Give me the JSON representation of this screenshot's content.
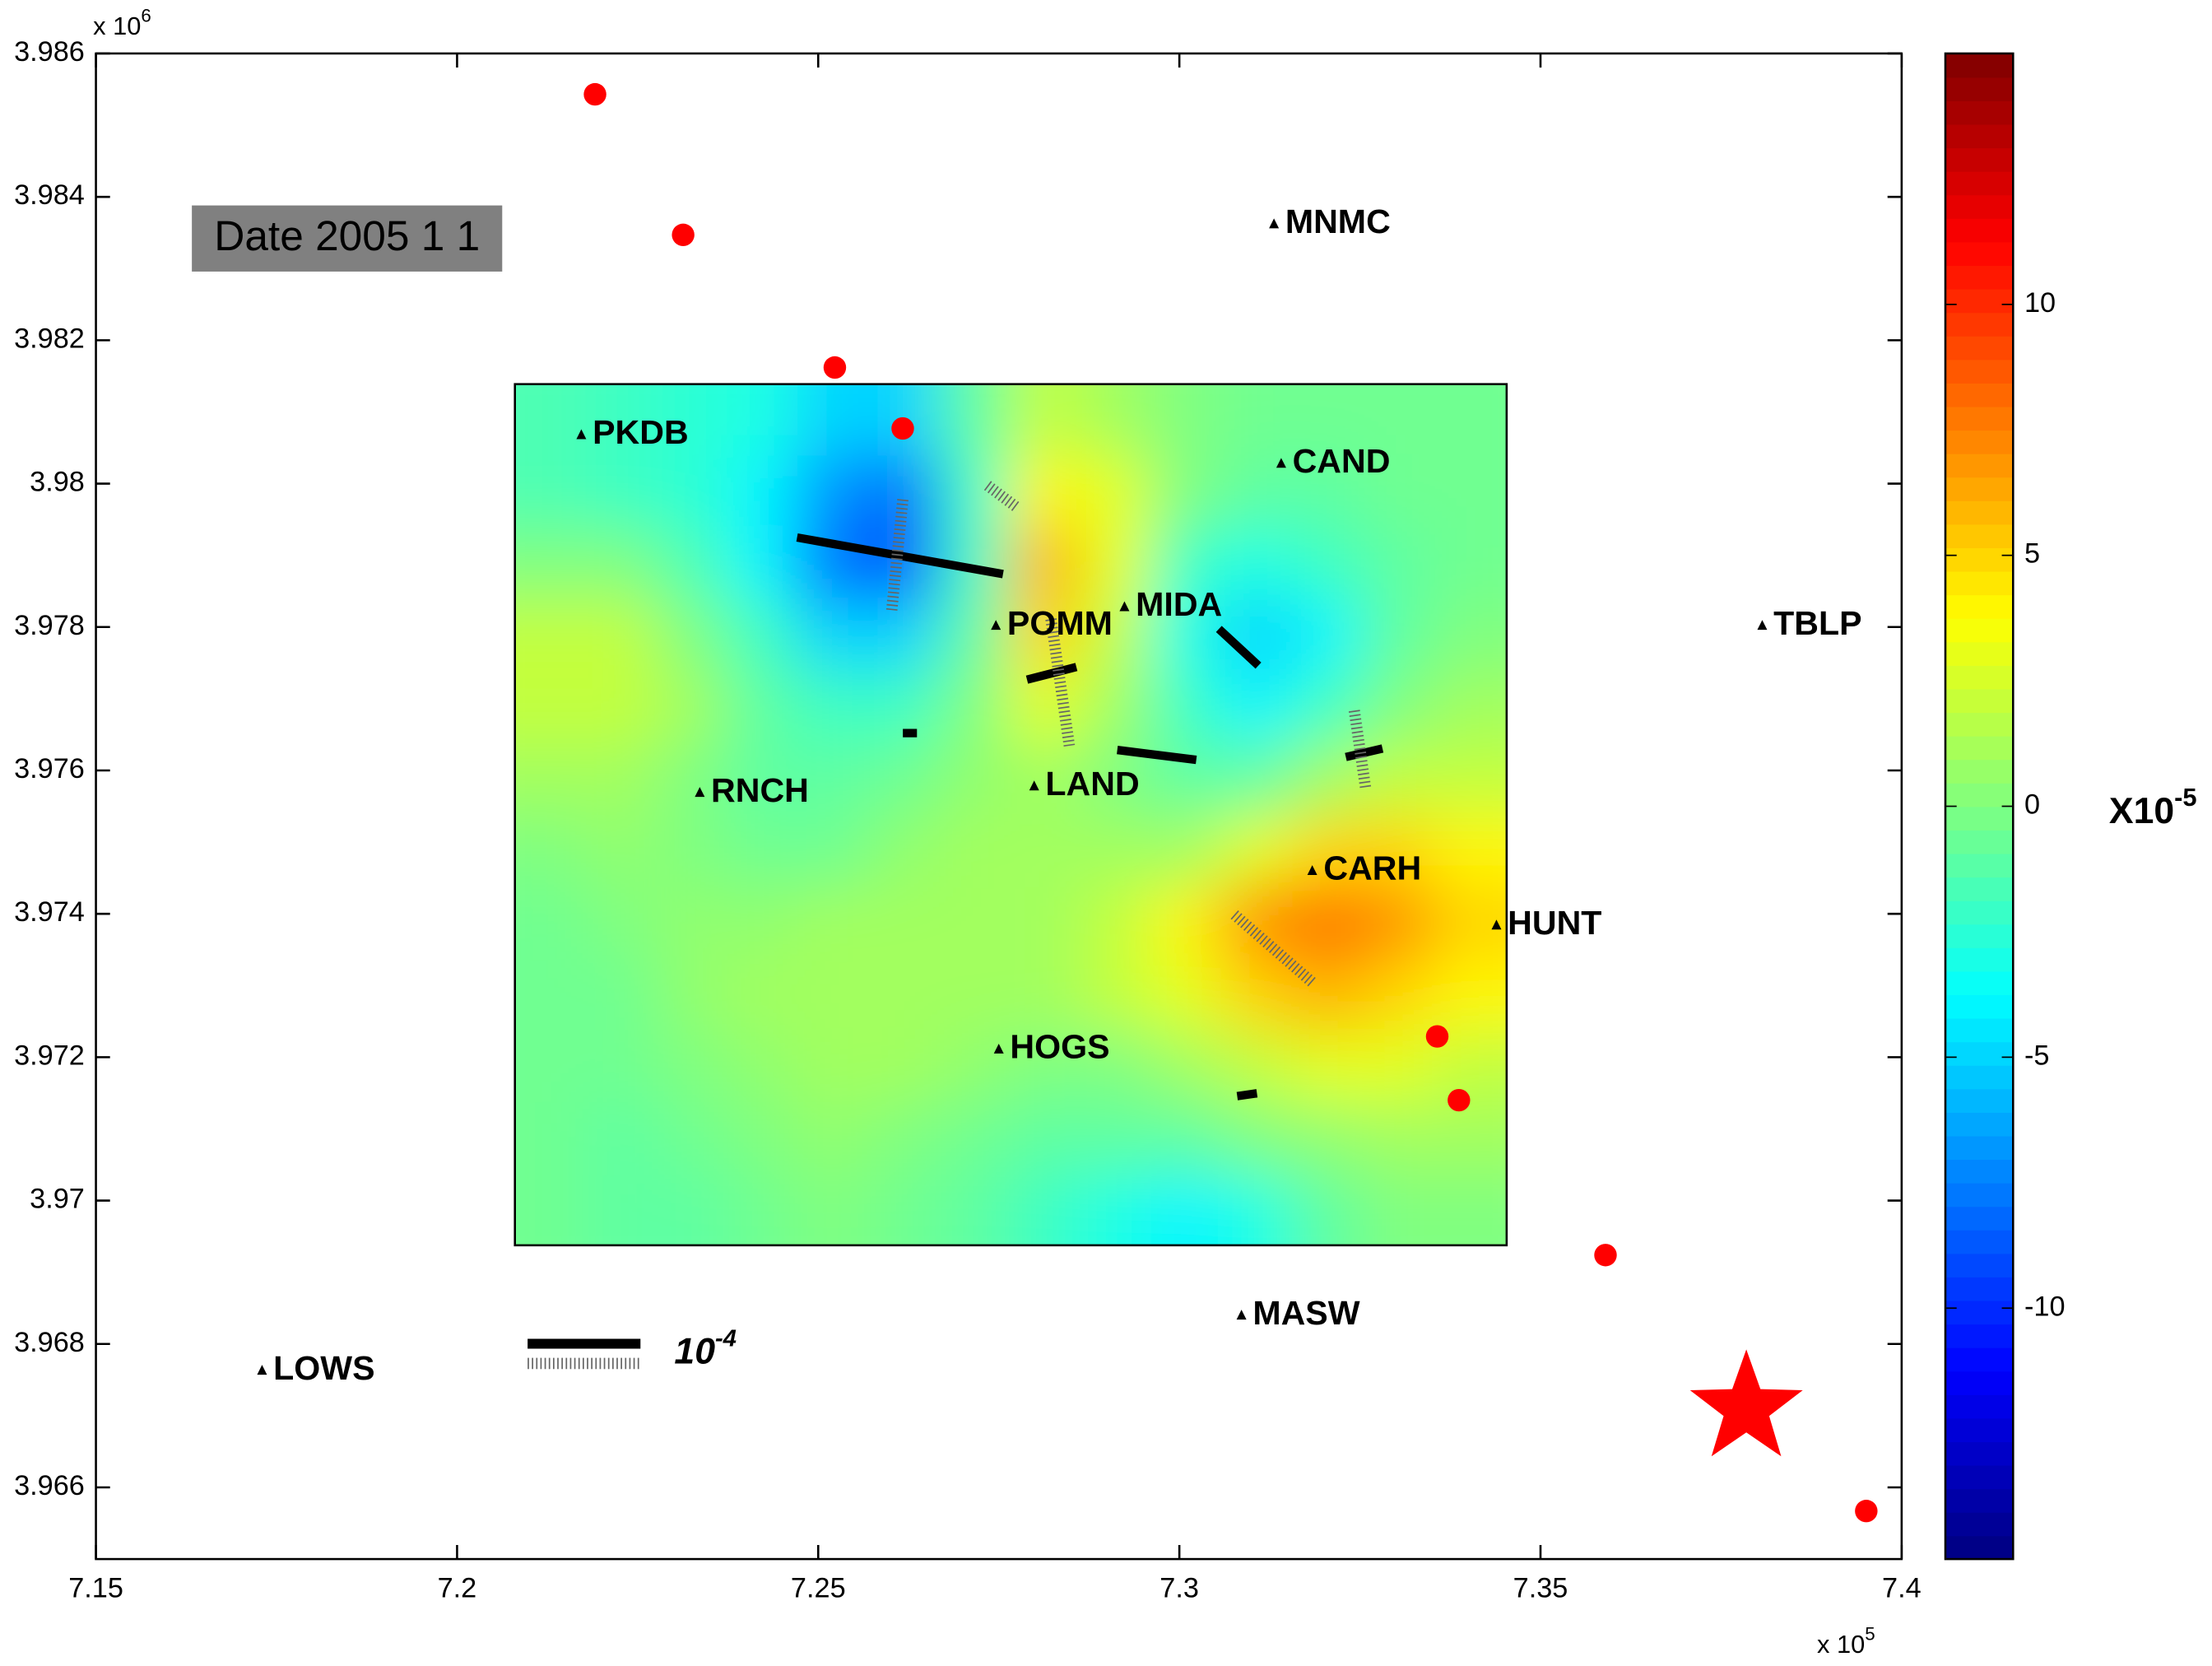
{
  "chart_data": {
    "type": "contour-map",
    "date_label": "Date 2005 1 1",
    "xlim": [
      7.15,
      7.4
    ],
    "xticks": [
      7.15,
      7.2,
      7.25,
      7.3,
      7.35,
      7.4
    ],
    "x_multiplier": {
      "base": "x 10",
      "exponent": "5"
    },
    "ylim": [
      3.965,
      3.986
    ],
    "yticks": [
      3.966,
      3.968,
      3.97,
      3.972,
      3.974,
      3.976,
      3.978,
      3.98,
      3.982,
      3.984,
      3.986
    ],
    "y_multiplier": {
      "base": "x 10",
      "exponent": "6"
    },
    "colormap": "jet",
    "clim": [
      -15,
      15
    ],
    "cticks": [
      -10,
      -5,
      0,
      5,
      10
    ],
    "colorbar_label": {
      "base": "X10",
      "exponent": "-5"
    },
    "scale_label": {
      "base": "10",
      "exponent": "-4"
    },
    "grid": {
      "x": [
        7.2129,
        7.2227,
        7.2324,
        7.2422,
        7.252,
        7.2617,
        7.2715,
        7.2813,
        7.291,
        7.3008,
        7.3105,
        7.3203,
        7.3301,
        7.3398
      ],
      "y": [
        3.98089,
        3.97989,
        3.97889,
        3.97789,
        3.97688,
        3.97588,
        3.97488,
        3.97388,
        3.97288,
        3.97187,
        3.97087,
        3.96987
      ],
      "z": [
        [
          -1.5,
          -2,
          -2.5,
          -3,
          -5,
          -5,
          -1,
          2,
          1,
          0,
          -0.5,
          -0.5,
          -0.5,
          -0.5
        ],
        [
          -1.5,
          -2,
          -2.5,
          -4,
          -7,
          -8,
          -2,
          4,
          3,
          0,
          -1,
          -1,
          -0.5,
          -0.5
        ],
        [
          0,
          0,
          -1.5,
          -4,
          -8,
          -9,
          -2,
          6,
          3,
          -2,
          -3,
          -2,
          -1,
          -0.5
        ],
        [
          2,
          2,
          0,
          -2,
          -5,
          -5,
          -1,
          5,
          2,
          -3,
          -5,
          -4,
          -1,
          0
        ],
        [
          2,
          2,
          1,
          -1,
          -2,
          -2,
          0,
          3,
          1,
          -2,
          -4,
          -2,
          0,
          1
        ],
        [
          1,
          1,
          0,
          -1,
          -1,
          -0.5,
          0.5,
          1,
          0,
          -1,
          -1,
          1,
          2,
          2
        ],
        [
          0,
          0.5,
          0,
          -0.5,
          -0.5,
          0.5,
          1,
          1,
          1,
          1,
          3,
          5,
          5,
          4
        ],
        [
          -0.5,
          0,
          0.5,
          0.5,
          1,
          1,
          1,
          1,
          2,
          4,
          7,
          8,
          7,
          5
        ],
        [
          -0.5,
          -0.5,
          0.5,
          1,
          1,
          1,
          1,
          1,
          2,
          3,
          5,
          6,
          5,
          4
        ],
        [
          -0.5,
          -0.5,
          0,
          0.5,
          1,
          1,
          0.5,
          0,
          0,
          1,
          2,
          3,
          3,
          2
        ],
        [
          -0.5,
          -1,
          -0.5,
          0,
          0.5,
          0,
          -0.5,
          -1,
          -1,
          -1,
          0,
          0.5,
          1,
          1
        ],
        [
          -0.5,
          -1,
          -1,
          -0.5,
          0,
          -0.5,
          -1,
          -2,
          -3,
          -4,
          -3,
          -1,
          0,
          0
        ]
      ]
    },
    "stations": {
      "names": [
        "PKDB",
        "CAND",
        "MNMC",
        "TBLP",
        "MIDA",
        "POMM",
        "LAND",
        "RNCH",
        "CARH",
        "HUNT",
        "HOGS",
        "MASW",
        "LOWS"
      ],
      "x": [
        7.2172,
        7.3141,
        7.3131,
        7.3807,
        7.2924,
        7.2746,
        7.2799,
        7.2336,
        7.3184,
        7.3439,
        7.275,
        7.3086,
        7.173
      ],
      "y": [
        3.98068,
        3.98028,
        3.98362,
        3.97802,
        3.97828,
        3.97802,
        3.97578,
        3.97569,
        3.9746,
        3.97384,
        3.97211,
        3.9684,
        3.96763
      ]
    },
    "events": {
      "color": "#ff0000",
      "x": [
        7.2191,
        7.2313,
        7.2523,
        7.2617,
        7.3357,
        7.3387,
        7.359,
        7.3951
      ],
      "y": [
        3.98543,
        3.98347,
        3.98162,
        3.98077,
        3.97229,
        3.9714,
        3.96924,
        3.96567
      ]
    },
    "mainshock": {
      "color": "#ff0000",
      "x": 7.3785,
      "y": 3.9671
    }
  }
}
